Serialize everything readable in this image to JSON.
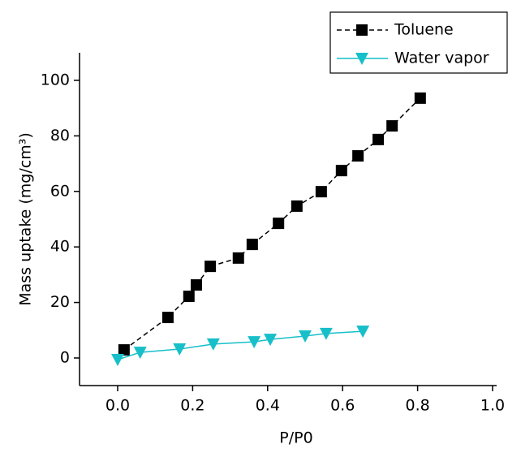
{
  "chart_data": {
    "type": "line",
    "x_label": "P/P0",
    "y_label": "Mass uptake (mg/cm³)",
    "xlim": [
      -0.1,
      1.0
    ],
    "ylim": [
      -10,
      110
    ],
    "xticks": [
      {
        "value": 0,
        "label": "0.0"
      },
      0.2,
      0.4,
      0.6,
      0.8,
      {
        "value": 1,
        "label": "1.0"
      }
    ],
    "yticks": [
      0,
      20,
      40,
      60,
      80,
      100
    ],
    "legend": "top-right",
    "series": [
      {
        "name": "Toluene",
        "color": "#000000",
        "marker": "square",
        "dash": true,
        "x": [
          0.017,
          0.134,
          0.19,
          0.21,
          0.247,
          0.322,
          0.359,
          0.429,
          0.478,
          0.543,
          0.597,
          0.641,
          0.695,
          0.732,
          0.807
        ],
        "values": [
          2.9,
          14.6,
          22.2,
          26.3,
          33.0,
          36.0,
          40.9,
          48.5,
          54.7,
          59.9,
          67.5,
          72.8,
          78.7,
          83.6,
          93.6
        ]
      },
      {
        "name": "Water vapor",
        "color": "#17bfc9",
        "marker": "triangle-down",
        "dash": false,
        "x": [
          0,
          0.06,
          0.165,
          0.255,
          0.364,
          0.407,
          0.5,
          0.556,
          0.654
        ],
        "values": [
          -0.6,
          2.0,
          3.2,
          5.0,
          5.8,
          6.7,
          7.9,
          8.8,
          9.6
        ]
      }
    ]
  }
}
